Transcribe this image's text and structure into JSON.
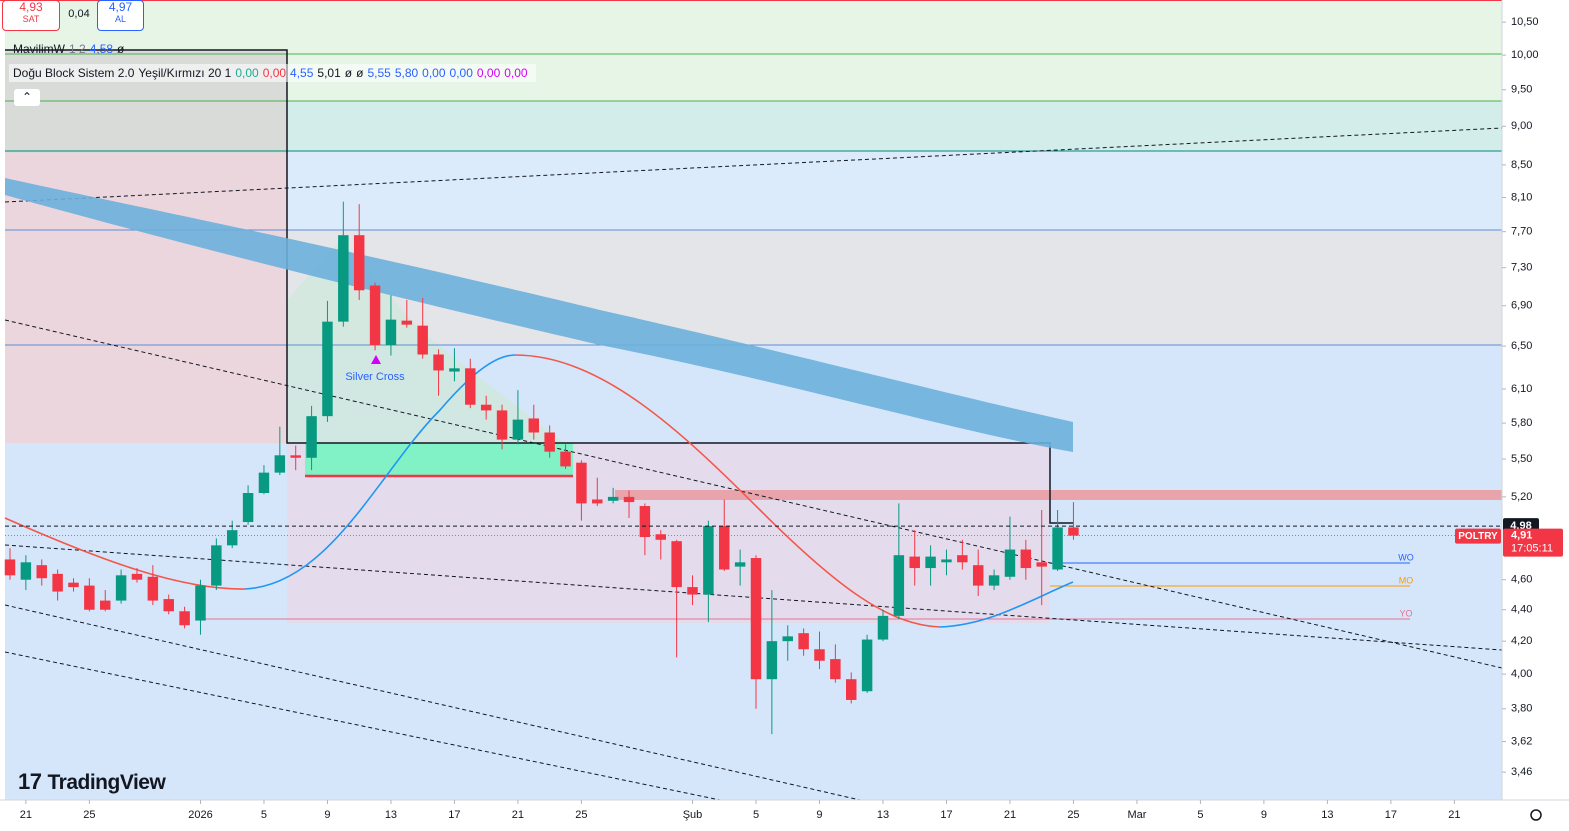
{
  "order_panel": {
    "sell_price": "4,93",
    "sell_label": "SAT",
    "spread": "0,04",
    "buy_price": "4,97",
    "buy_label": "AL"
  },
  "indicators": [
    [
      {
        "text": "MavilimW",
        "color": "#131722"
      },
      {
        "text": "1 2",
        "color": "#787b86"
      },
      {
        "text": "4,58",
        "color": "#2962ff"
      },
      {
        "text": "ø",
        "color": "#131722"
      }
    ],
    [
      {
        "text": "Doğu Block Sistem 2.0",
        "color": "#131722"
      },
      {
        "text": "Yeşil/Kırmızı 20 1",
        "color": "#131722"
      },
      {
        "text": "0,00",
        "color": "#22ab94"
      },
      {
        "text": "0,00",
        "color": "#f23645"
      },
      {
        "text": "4,55",
        "color": "#2962ff"
      },
      {
        "text": "5,01",
        "color": "#131722"
      },
      {
        "text": "ø",
        "color": "#131722"
      },
      {
        "text": "ø",
        "color": "#131722"
      },
      {
        "text": "5,55",
        "color": "#2962ff"
      },
      {
        "text": "5,80",
        "color": "#2962ff"
      },
      {
        "text": "0,00",
        "color": "#2962ff"
      },
      {
        "text": "0,00",
        "color": "#2962ff"
      },
      {
        "text": "0,00",
        "color": "#d500f9"
      },
      {
        "text": "0,00",
        "color": "#d500f9"
      }
    ]
  ],
  "brand": "TradingView",
  "chart_data": {
    "type": "candlestick",
    "symbol": "POLTRY",
    "up_color": "#089981",
    "down_color": "#f23645",
    "log_scale": true,
    "x": [
      "2025-12-20",
      "2025-12-21",
      "2025-12-22",
      "2025-12-23",
      "2025-12-24",
      "2025-12-25",
      "2025-12-26",
      "2025-12-27",
      "2025-12-28",
      "2025-12-29",
      "2025-12-30",
      "2025-12-31",
      "2026-01-01",
      "2026-01-02",
      "2026-01-03",
      "2026-01-04",
      "2026-01-05",
      "2026-01-06",
      "2026-01-07",
      "2026-01-08",
      "2026-01-09",
      "2026-01-10",
      "2026-01-11",
      "2026-01-12",
      "2026-01-13",
      "2026-01-14",
      "2026-01-15",
      "2026-01-16",
      "2026-01-17",
      "2026-01-18",
      "2026-01-19",
      "2026-01-20",
      "2026-01-21",
      "2026-01-22",
      "2026-01-23",
      "2026-01-24",
      "2026-01-25",
      "2026-01-26",
      "2026-01-27",
      "2026-01-28",
      "2026-01-29",
      "2026-01-30",
      "2026-01-31",
      "2026-02-01",
      "2026-02-02",
      "2026-02-03",
      "2026-02-04",
      "2026-02-05",
      "2026-02-06",
      "2026-02-07",
      "2026-02-08",
      "2026-02-09",
      "2026-02-10",
      "2026-02-11",
      "2026-02-12",
      "2026-02-13",
      "2026-02-14",
      "2026-02-15",
      "2026-02-16",
      "2026-02-17",
      "2026-02-18",
      "2026-02-19",
      "2026-02-20",
      "2026-02-21",
      "2026-02-22",
      "2026-02-23",
      "2026-02-24",
      "2026-02-25"
    ],
    "open": [
      4.74,
      4.6,
      4.7,
      4.64,
      4.58,
      4.56,
      4.46,
      4.46,
      4.64,
      4.62,
      4.47,
      4.39,
      4.33,
      4.56,
      4.84,
      5.01,
      5.23,
      5.39,
      5.53,
      5.51,
      5.86,
      6.74,
      7.66,
      7.11,
      6.51,
      6.75,
      6.7,
      6.42,
      6.26,
      6.29,
      5.96,
      5.91,
      5.66,
      5.84,
      5.72,
      5.56,
      5.47,
      5.18,
      5.17,
      5.2,
      5.13,
      4.92,
      4.87,
      4.55,
      4.5,
      4.98,
      4.69,
      4.75,
      3.97,
      4.2,
      4.25,
      4.15,
      4.09,
      3.97,
      3.9,
      4.21,
      4.36,
      4.76,
      4.68,
      4.72,
      4.77,
      4.7,
      4.56,
      4.62,
      4.81,
      4.72,
      4.67,
      4.97
    ],
    "high": [
      4.82,
      4.77,
      4.74,
      4.67,
      4.61,
      4.61,
      4.53,
      4.67,
      4.68,
      4.7,
      4.5,
      4.42,
      4.6,
      4.89,
      5.02,
      5.29,
      5.45,
      5.77,
      5.61,
      5.95,
      6.95,
      8.05,
      8.02,
      7.14,
      7.01,
      6.96,
      6.98,
      6.47,
      6.48,
      6.38,
      6.04,
      5.96,
      6.09,
      5.96,
      5.78,
      5.62,
      5.49,
      5.35,
      5.27,
      5.25,
      5.15,
      4.95,
      4.88,
      4.63,
      5.02,
      5.18,
      4.81,
      4.77,
      4.53,
      4.3,
      4.28,
      4.26,
      4.18,
      4.01,
      4.24,
      4.4,
      5.15,
      4.95,
      4.84,
      4.81,
      4.88,
      4.81,
      4.67,
      5.05,
      4.88,
      5.1,
      5.1,
      5.16
    ],
    "low": [
      4.6,
      4.53,
      4.56,
      4.46,
      4.52,
      4.39,
      4.39,
      4.44,
      4.58,
      4.43,
      4.37,
      4.28,
      4.24,
      4.53,
      4.82,
      4.99,
      5.22,
      5.37,
      5.41,
      5.41,
      5.81,
      6.69,
      6.96,
      6.46,
      6.41,
      6.68,
      6.38,
      6.04,
      6.17,
      5.93,
      5.83,
      5.58,
      5.62,
      5.66,
      5.51,
      5.42,
      5.02,
      5.13,
      5.15,
      5.04,
      4.77,
      4.74,
      4.1,
      4.43,
      4.32,
      4.66,
      4.56,
      3.8,
      3.66,
      4.08,
      4.11,
      4.03,
      3.95,
      3.83,
      3.89,
      4.2,
      4.34,
      4.56,
      4.56,
      4.63,
      4.67,
      4.49,
      4.53,
      4.6,
      4.6,
      4.43,
      4.66,
      4.88
    ],
    "close": [
      4.63,
      4.72,
      4.61,
      4.52,
      4.55,
      4.4,
      4.4,
      4.63,
      4.6,
      4.46,
      4.39,
      4.3,
      4.56,
      4.84,
      4.95,
      5.23,
      5.39,
      5.53,
      5.51,
      5.86,
      6.74,
      7.66,
      7.06,
      6.51,
      6.76,
      6.71,
      6.42,
      6.27,
      6.29,
      5.96,
      5.91,
      5.66,
      5.83,
      5.72,
      5.56,
      5.44,
      5.15,
      5.15,
      5.2,
      5.16,
      4.9,
      4.88,
      4.55,
      4.5,
      4.98,
      4.67,
      4.72,
      3.97,
      4.2,
      4.23,
      4.15,
      4.08,
      3.97,
      3.85,
      4.21,
      4.36,
      4.77,
      4.68,
      4.76,
      4.74,
      4.72,
      4.56,
      4.63,
      4.81,
      4.68,
      4.69,
      4.97,
      4.91
    ],
    "xlim": [
      "2025-12-19",
      "2026-03-24"
    ],
    "xticks": [
      {
        "value": "2025-12-21",
        "label": "21"
      },
      {
        "value": "2025-12-25",
        "label": "25"
      },
      {
        "value": "2026-01-01",
        "label": "2026"
      },
      {
        "value": "2026-01-05",
        "label": "5"
      },
      {
        "value": "2026-01-09",
        "label": "9"
      },
      {
        "value": "2026-01-13",
        "label": "13"
      },
      {
        "value": "2026-01-17",
        "label": "17"
      },
      {
        "value": "2026-01-21",
        "label": "21"
      },
      {
        "value": "2026-01-25",
        "label": "25"
      },
      {
        "value": "2026-02-01",
        "label": "Şub"
      },
      {
        "value": "2026-02-05",
        "label": "5"
      },
      {
        "value": "2026-02-09",
        "label": "9"
      },
      {
        "value": "2026-02-13",
        "label": "13"
      },
      {
        "value": "2026-02-17",
        "label": "17"
      },
      {
        "value": "2026-02-21",
        "label": "21"
      },
      {
        "value": "2026-02-25",
        "label": "25"
      },
      {
        "value": "2026-03-01",
        "label": "Mar"
      },
      {
        "value": "2026-03-05",
        "label": "5"
      },
      {
        "value": "2026-03-09",
        "label": "9"
      },
      {
        "value": "2026-03-13",
        "label": "13"
      },
      {
        "value": "2026-03-17",
        "label": "17"
      },
      {
        "value": "2026-03-21",
        "label": "21"
      }
    ],
    "ylim": [
      3.32,
      10.85
    ],
    "yticks": [
      {
        "value": 10.5,
        "label": "10,50"
      },
      {
        "value": 10,
        "label": "10,00"
      },
      {
        "value": 9.5,
        "label": "9,50"
      },
      {
        "value": 9,
        "label": "9,00"
      },
      {
        "value": 8.5,
        "label": "8,50"
      },
      {
        "value": 8.1,
        "label": "8,10"
      },
      {
        "value": 7.7,
        "label": "7,70"
      },
      {
        "value": 7.3,
        "label": "7,30"
      },
      {
        "value": 6.9,
        "label": "6,90"
      },
      {
        "value": 6.5,
        "label": "6,50"
      },
      {
        "value": 6.1,
        "label": "6,10"
      },
      {
        "value": 5.8,
        "label": "5,80"
      },
      {
        "value": 5.5,
        "label": "5,50"
      },
      {
        "value": 5.2,
        "label": "5,20"
      },
      {
        "value": 4.6,
        "label": "4,60"
      },
      {
        "value": 4.4,
        "label": "4,40"
      },
      {
        "value": 4.2,
        "label": "4,20"
      },
      {
        "value": 4,
        "label": "4,00"
      },
      {
        "value": 3.8,
        "label": "3,80"
      },
      {
        "value": 3.62,
        "label": "3,62"
      },
      {
        "value": 3.46,
        "label": "3,46"
      }
    ],
    "price_line": {
      "value": 4.98,
      "label": "4,98"
    },
    "last_price": {
      "value": 4.91,
      "label": "4,91"
    },
    "countdown": "17:05:11",
    "annotations": [
      "Silver Cross",
      "WO",
      "MO",
      "YO"
    ]
  }
}
